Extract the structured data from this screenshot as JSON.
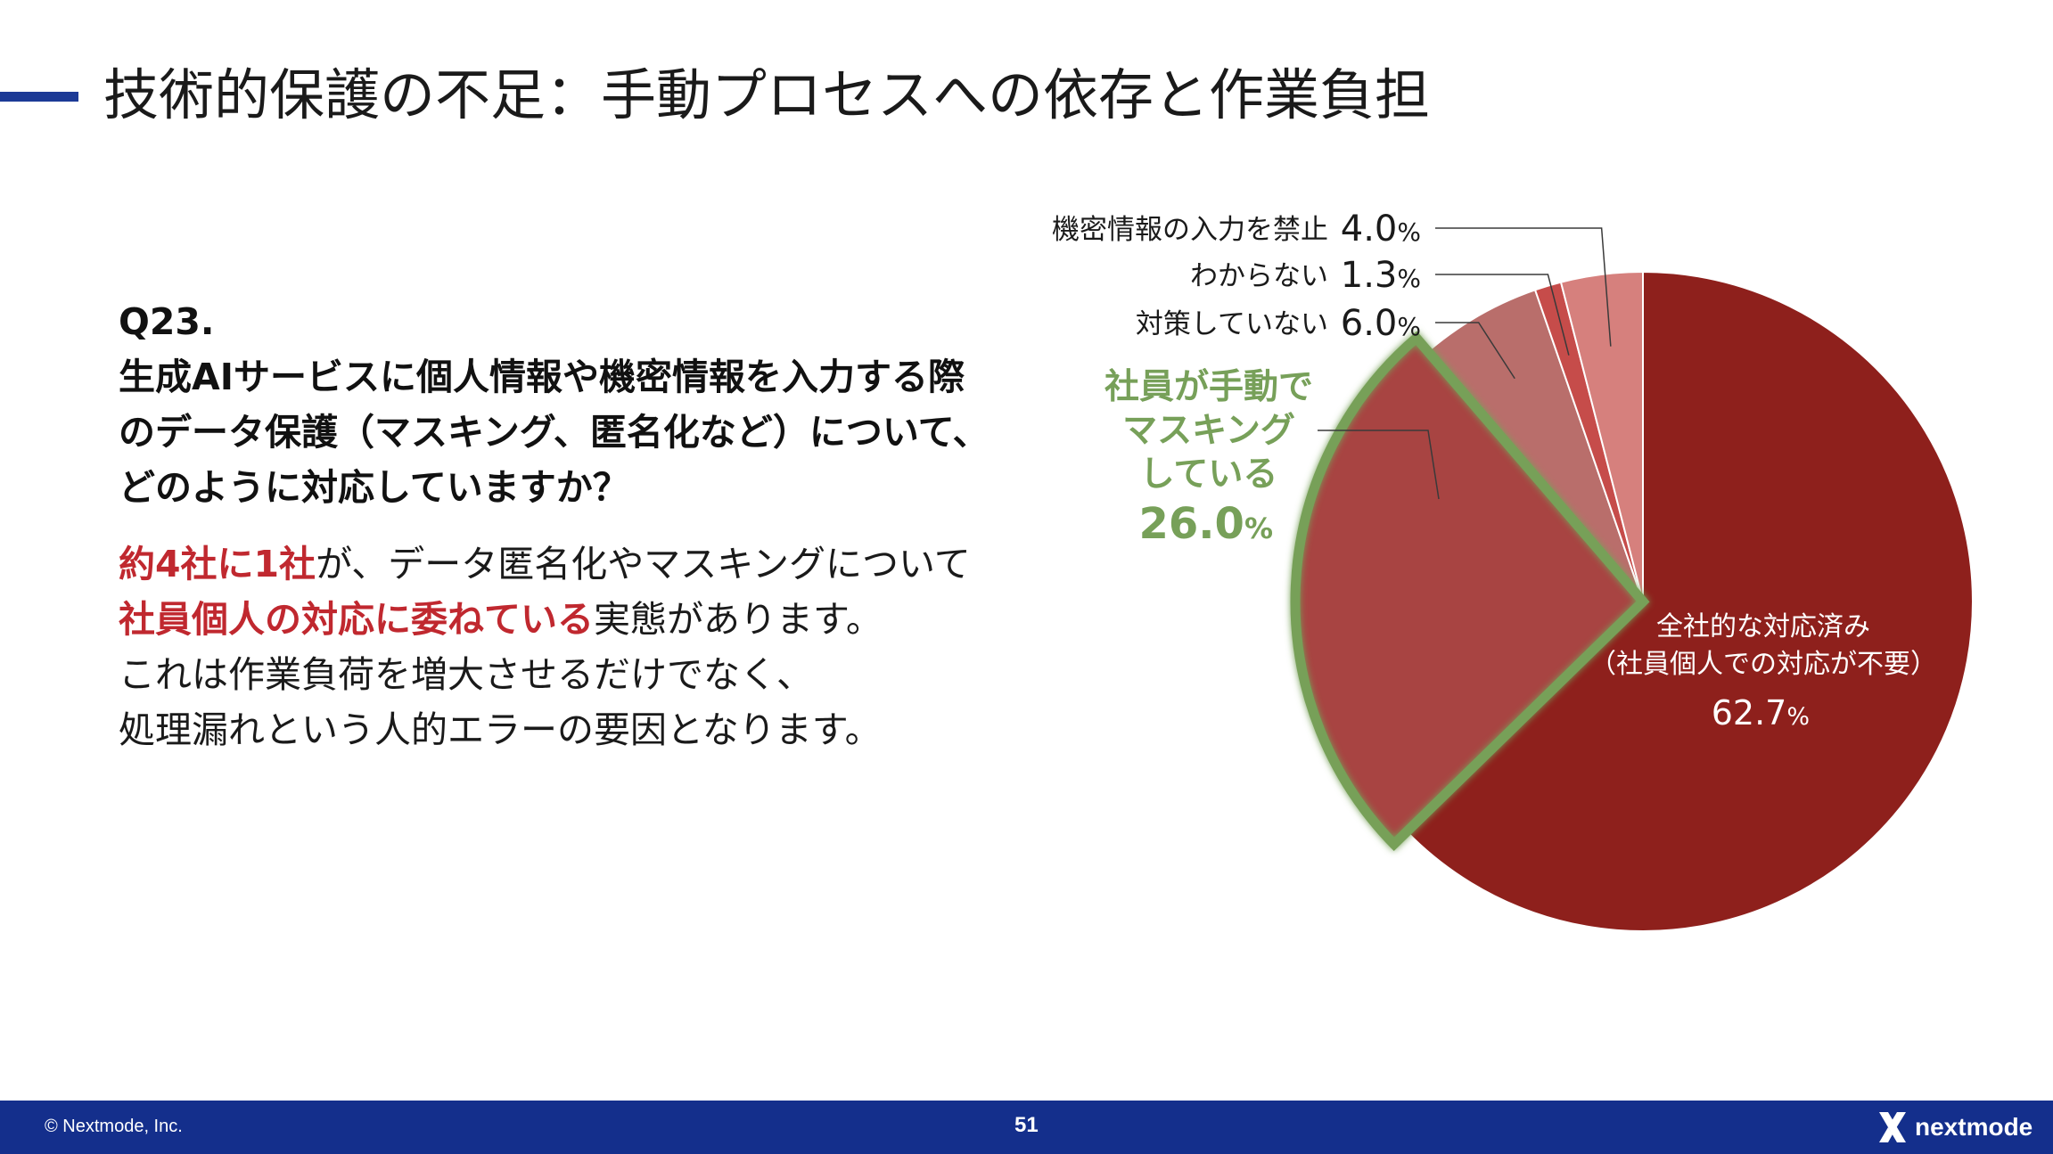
{
  "title": "技術的保護の不足：手動プロセスへの依存と作業負担",
  "question": {
    "number": "Q23.",
    "lines": [
      "生成AIサービスに個人情報や機密情報を入力する際",
      "のデータ保護（マスキング、匿名化など）について、",
      "どのように対応していますか？"
    ]
  },
  "body": {
    "line1_highlight": "約4社に1社",
    "line1_rest": "が、データ匿名化やマスキングについて",
    "line2_highlight": "社員個人の対応に委ねている",
    "line2_rest": "実態があります。",
    "line3": "これは作業負荷を増大させるだけでなく、",
    "line4": "処理漏れという人的エラーの要因となります。"
  },
  "chart_data": {
    "type": "pie",
    "unit": "%",
    "slices": [
      {
        "label": "全社的な対応済み",
        "sublabel": "（社員個人での対応が不要）",
        "value": 62.7,
        "value_text": "62.7",
        "color": "#8e201c"
      },
      {
        "label": "社員が手動でマスキングしている",
        "label_lines": [
          "社員が手動で",
          "マスキング",
          "している"
        ],
        "value": 26.0,
        "value_text": "26.0",
        "color": "#a84442",
        "highlight_color": "#77a059"
      },
      {
        "label": "対策していない",
        "value": 6.0,
        "value_text": "6.0",
        "color": "#b96e6b"
      },
      {
        "label": "わからない",
        "value": 1.3,
        "value_text": "1.3",
        "color": "#c64c4a"
      },
      {
        "label": "機密情報の入力を禁止",
        "value": 4.0,
        "value_text": "4.0",
        "color": "#d6807d"
      }
    ]
  },
  "footer": {
    "copyright": "© Nextmode, Inc.",
    "page_number": "51",
    "brand": "nextmode"
  },
  "colors": {
    "title_accent": "#1c3a96",
    "highlight_text": "#c0282f",
    "footer_bg": "#142f8c",
    "callout_green": "#77a059"
  }
}
